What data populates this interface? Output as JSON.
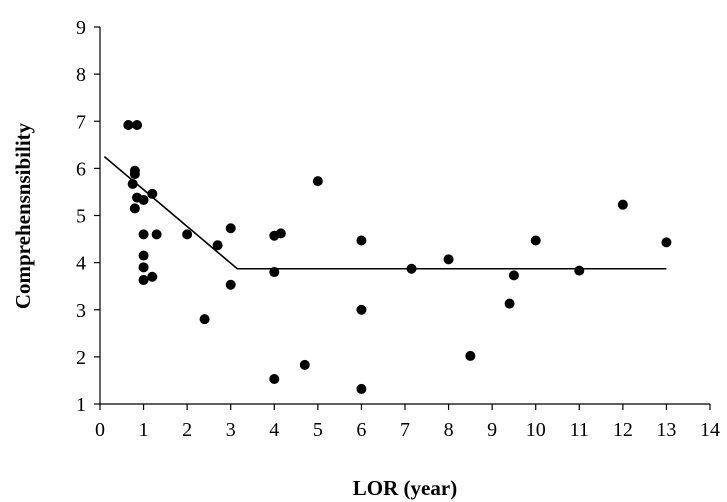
{
  "chart_data": {
    "type": "scatter",
    "title": "",
    "xlabel": "LOR (year)",
    "ylabel": "Comprehensnsibility",
    "xlim": [
      0,
      14
    ],
    "ylim": [
      1,
      9
    ],
    "xticks": [
      "0",
      "1",
      "2",
      "3",
      "4",
      "5",
      "6",
      "7",
      "8",
      "9",
      "10",
      "11",
      "12",
      "13",
      "14"
    ],
    "yticks": [
      "1",
      "2",
      "3",
      "4",
      "5",
      "6",
      "7",
      "8",
      "9"
    ],
    "grid": false,
    "legend": "none",
    "marker_color": "#000000",
    "points": [
      {
        "x": 0.65,
        "y": 6.92
      },
      {
        "x": 0.85,
        "y": 6.92
      },
      {
        "x": 0.8,
        "y": 5.95
      },
      {
        "x": 0.8,
        "y": 5.88
      },
      {
        "x": 0.75,
        "y": 5.67
      },
      {
        "x": 0.85,
        "y": 5.38
      },
      {
        "x": 0.8,
        "y": 5.15
      },
      {
        "x": 1.0,
        "y": 5.33
      },
      {
        "x": 1.2,
        "y": 5.46
      },
      {
        "x": 1.0,
        "y": 4.6
      },
      {
        "x": 1.3,
        "y": 4.6
      },
      {
        "x": 1.0,
        "y": 4.15
      },
      {
        "x": 1.0,
        "y": 3.9
      },
      {
        "x": 1.2,
        "y": 3.7
      },
      {
        "x": 1.0,
        "y": 3.63
      },
      {
        "x": 2.0,
        "y": 4.6
      },
      {
        "x": 2.7,
        "y": 4.37
      },
      {
        "x": 3.0,
        "y": 4.73
      },
      {
        "x": 3.0,
        "y": 3.53
      },
      {
        "x": 2.4,
        "y": 2.8
      },
      {
        "x": 4.0,
        "y": 4.57
      },
      {
        "x": 4.15,
        "y": 4.62
      },
      {
        "x": 4.0,
        "y": 3.8
      },
      {
        "x": 4.0,
        "y": 1.53
      },
      {
        "x": 4.7,
        "y": 1.83
      },
      {
        "x": 5.0,
        "y": 5.73
      },
      {
        "x": 6.0,
        "y": 4.47
      },
      {
        "x": 6.0,
        "y": 3.0
      },
      {
        "x": 6.0,
        "y": 1.32
      },
      {
        "x": 7.15,
        "y": 3.87
      },
      {
        "x": 8.0,
        "y": 4.07
      },
      {
        "x": 8.5,
        "y": 2.02
      },
      {
        "x": 9.4,
        "y": 3.13
      },
      {
        "x": 9.5,
        "y": 3.73
      },
      {
        "x": 10.0,
        "y": 4.47
      },
      {
        "x": 11.0,
        "y": 3.83
      },
      {
        "x": 12.0,
        "y": 5.23
      },
      {
        "x": 13.0,
        "y": 4.43
      }
    ],
    "fit_line": [
      {
        "x": 0.1,
        "y": 6.25
      },
      {
        "x": 3.15,
        "y": 3.87
      },
      {
        "x": 13.0,
        "y": 3.87
      }
    ]
  }
}
